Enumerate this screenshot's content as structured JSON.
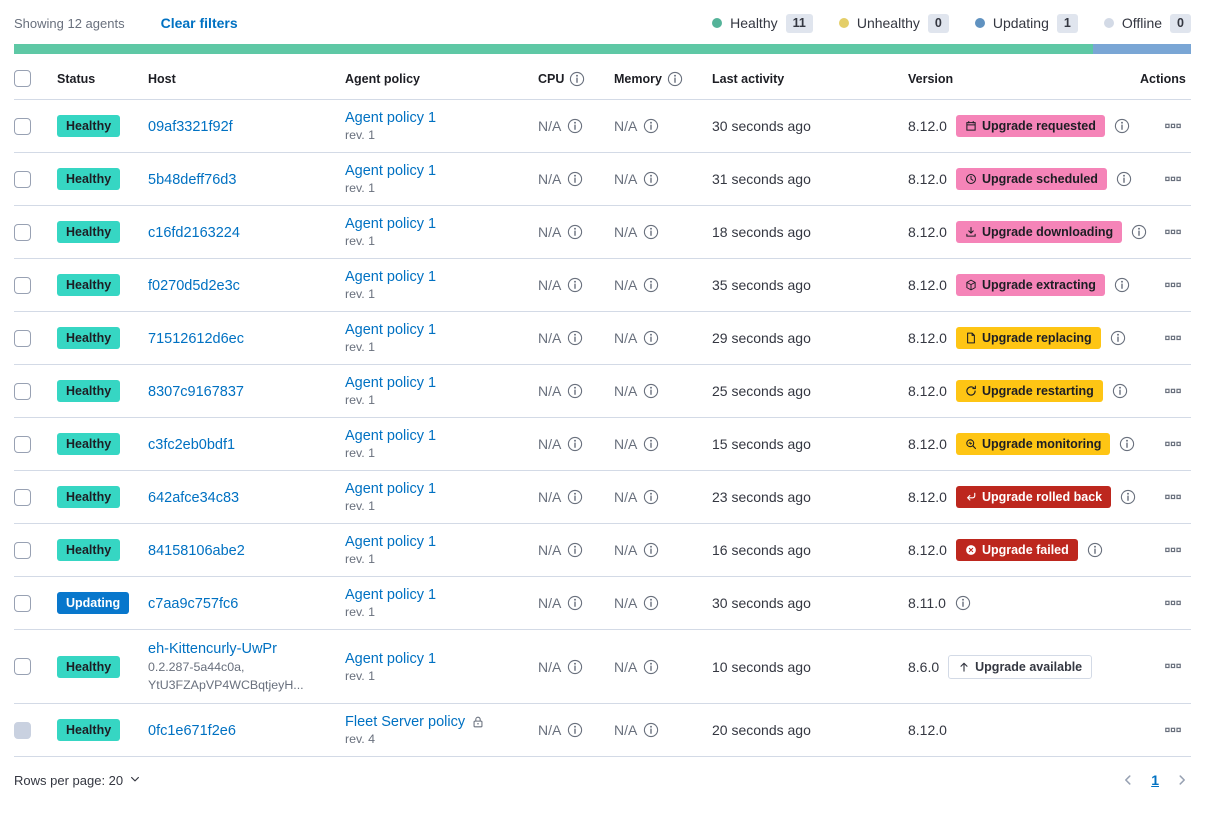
{
  "toolbar": {
    "showing_text": "Showing 12 agents",
    "clear_filters_label": "Clear filters",
    "legend": [
      {
        "label": "Healthy",
        "count": "11",
        "dot_color": "#54B399"
      },
      {
        "label": "Unhealthy",
        "count": "0",
        "dot_color": "#E4CE68"
      },
      {
        "label": "Updating",
        "count": "1",
        "dot_color": "#6092C0"
      },
      {
        "label": "Offline",
        "count": "0",
        "dot_color": "#D3DAE6"
      }
    ],
    "progress_segments": [
      {
        "color": "#5EC8A5",
        "percent": 91.67
      },
      {
        "color": "#7AA6D5",
        "percent": 8.33
      }
    ]
  },
  "colors": {
    "status_healthy_bg": "#36D6C3",
    "status_healthy_text": "#1D1E24",
    "status_updating_bg": "#0877CC",
    "status_updating_text": "#FFFFFF",
    "badge_pink_bg": "#F584B8",
    "badge_pink_text": "#1D1E24",
    "badge_yellow_bg": "#FEC514",
    "badge_yellow_text": "#1D1E24",
    "badge_red_bg": "#BD271E",
    "badge_red_text": "#FFFFFF",
    "badge_hollow_bg": "#FFFFFF",
    "badge_hollow_text": "#343741",
    "badge_hollow_border": "#D3DAE6",
    "link": "#0071C2"
  },
  "table": {
    "columns": [
      {
        "label": "Status",
        "info": false
      },
      {
        "label": "Host",
        "info": false
      },
      {
        "label": "Agent policy",
        "info": false
      },
      {
        "label": "CPU",
        "info": true
      },
      {
        "label": "Memory",
        "info": true
      },
      {
        "label": "Last activity",
        "info": false
      },
      {
        "label": "Version",
        "info": false
      },
      {
        "label": "Actions",
        "info": false
      }
    ],
    "rows": [
      {
        "status": {
          "label": "Healthy",
          "type": "healthy"
        },
        "host": "09af3321f92f",
        "host_sub": [],
        "policy": "Agent policy 1",
        "policy_rev": "rev. 1",
        "policy_locked": false,
        "cpu": "N/A",
        "memory": "N/A",
        "last_activity": "30 seconds ago",
        "version": "8.12.0",
        "upgrade_badge": {
          "label": "Upgrade requested",
          "type": "pink",
          "icon": "calendar-icon"
        },
        "version_info": true,
        "checkbox_disabled": false
      },
      {
        "status": {
          "label": "Healthy",
          "type": "healthy"
        },
        "host": "5b48deff76d3",
        "host_sub": [],
        "policy": "Agent policy 1",
        "policy_rev": "rev. 1",
        "policy_locked": false,
        "cpu": "N/A",
        "memory": "N/A",
        "last_activity": "31 seconds ago",
        "version": "8.12.0",
        "upgrade_badge": {
          "label": "Upgrade scheduled",
          "type": "pink",
          "icon": "clock-icon"
        },
        "version_info": true,
        "checkbox_disabled": false
      },
      {
        "status": {
          "label": "Healthy",
          "type": "healthy"
        },
        "host": "c16fd2163224",
        "host_sub": [],
        "policy": "Agent policy 1",
        "policy_rev": "rev. 1",
        "policy_locked": false,
        "cpu": "N/A",
        "memory": "N/A",
        "last_activity": "18 seconds ago",
        "version": "8.12.0",
        "upgrade_badge": {
          "label": "Upgrade downloading",
          "type": "pink",
          "icon": "download-icon"
        },
        "version_info": true,
        "checkbox_disabled": false
      },
      {
        "status": {
          "label": "Healthy",
          "type": "healthy"
        },
        "host": "f0270d5d2e3c",
        "host_sub": [],
        "policy": "Agent policy 1",
        "policy_rev": "rev. 1",
        "policy_locked": false,
        "cpu": "N/A",
        "memory": "N/A",
        "last_activity": "35 seconds ago",
        "version": "8.12.0",
        "upgrade_badge": {
          "label": "Upgrade extracting",
          "type": "pink",
          "icon": "package-icon"
        },
        "version_info": true,
        "checkbox_disabled": false
      },
      {
        "status": {
          "label": "Healthy",
          "type": "healthy"
        },
        "host": "71512612d6ec",
        "host_sub": [],
        "policy": "Agent policy 1",
        "policy_rev": "rev. 1",
        "policy_locked": false,
        "cpu": "N/A",
        "memory": "N/A",
        "last_activity": "29 seconds ago",
        "version": "8.12.0",
        "upgrade_badge": {
          "label": "Upgrade replacing",
          "type": "yellow",
          "icon": "document-icon"
        },
        "version_info": true,
        "checkbox_disabled": false
      },
      {
        "status": {
          "label": "Healthy",
          "type": "healthy"
        },
        "host": "8307c9167837",
        "host_sub": [],
        "policy": "Agent policy 1",
        "policy_rev": "rev. 1",
        "policy_locked": false,
        "cpu": "N/A",
        "memory": "N/A",
        "last_activity": "25 seconds ago",
        "version": "8.12.0",
        "upgrade_badge": {
          "label": "Upgrade restarting",
          "type": "yellow",
          "icon": "refresh-icon"
        },
        "version_info": true,
        "checkbox_disabled": false
      },
      {
        "status": {
          "label": "Healthy",
          "type": "healthy"
        },
        "host": "c3fc2eb0bdf1",
        "host_sub": [],
        "policy": "Agent policy 1",
        "policy_rev": "rev. 1",
        "policy_locked": false,
        "cpu": "N/A",
        "memory": "N/A",
        "last_activity": "15 seconds ago",
        "version": "8.12.0",
        "upgrade_badge": {
          "label": "Upgrade monitoring",
          "type": "yellow",
          "icon": "inspect-icon"
        },
        "version_info": true,
        "checkbox_disabled": false
      },
      {
        "status": {
          "label": "Healthy",
          "type": "healthy"
        },
        "host": "642afce34c83",
        "host_sub": [],
        "policy": "Agent policy 1",
        "policy_rev": "rev. 1",
        "policy_locked": false,
        "cpu": "N/A",
        "memory": "N/A",
        "last_activity": "23 seconds ago",
        "version": "8.12.0",
        "upgrade_badge": {
          "label": "Upgrade rolled back",
          "type": "red",
          "icon": "return-arrow-icon"
        },
        "version_info": true,
        "checkbox_disabled": false
      },
      {
        "status": {
          "label": "Healthy",
          "type": "healthy"
        },
        "host": "84158106abe2",
        "host_sub": [],
        "policy": "Agent policy 1",
        "policy_rev": "rev. 1",
        "policy_locked": false,
        "cpu": "N/A",
        "memory": "N/A",
        "last_activity": "16 seconds ago",
        "version": "8.12.0",
        "upgrade_badge": {
          "label": "Upgrade failed",
          "type": "red",
          "icon": "error-icon"
        },
        "version_info": true,
        "checkbox_disabled": false
      },
      {
        "status": {
          "label": "Updating",
          "type": "updating"
        },
        "host": "c7aa9c757fc6",
        "host_sub": [],
        "policy": "Agent policy 1",
        "policy_rev": "rev. 1",
        "policy_locked": false,
        "cpu": "N/A",
        "memory": "N/A",
        "last_activity": "30 seconds ago",
        "version": "8.11.0",
        "upgrade_badge": null,
        "version_info": true,
        "checkbox_disabled": false
      },
      {
        "status": {
          "label": "Healthy",
          "type": "healthy"
        },
        "host": "eh-Kittencurly-UwPr",
        "host_sub": [
          "0.2.287-5a44c0a,",
          "YtU3FZApVP4WCBqtjeyH..."
        ],
        "policy": "Agent policy 1",
        "policy_rev": "rev. 1",
        "policy_locked": false,
        "cpu": "N/A",
        "memory": "N/A",
        "last_activity": "10 seconds ago",
        "version": "8.6.0",
        "upgrade_badge": {
          "label": "Upgrade available",
          "type": "hollow",
          "icon": "arrow-up-icon"
        },
        "version_info": false,
        "checkbox_disabled": false
      },
      {
        "status": {
          "label": "Healthy",
          "type": "healthy"
        },
        "host": "0fc1e671f2e6",
        "host_sub": [],
        "policy": "Fleet Server policy",
        "policy_rev": "rev. 4",
        "policy_locked": true,
        "cpu": "N/A",
        "memory": "N/A",
        "last_activity": "20 seconds ago",
        "version": "8.12.0",
        "upgrade_badge": null,
        "version_info": false,
        "checkbox_disabled": true
      }
    ]
  },
  "footer": {
    "rows_per_page_label": "Rows per page: 20",
    "page_number": "1"
  }
}
